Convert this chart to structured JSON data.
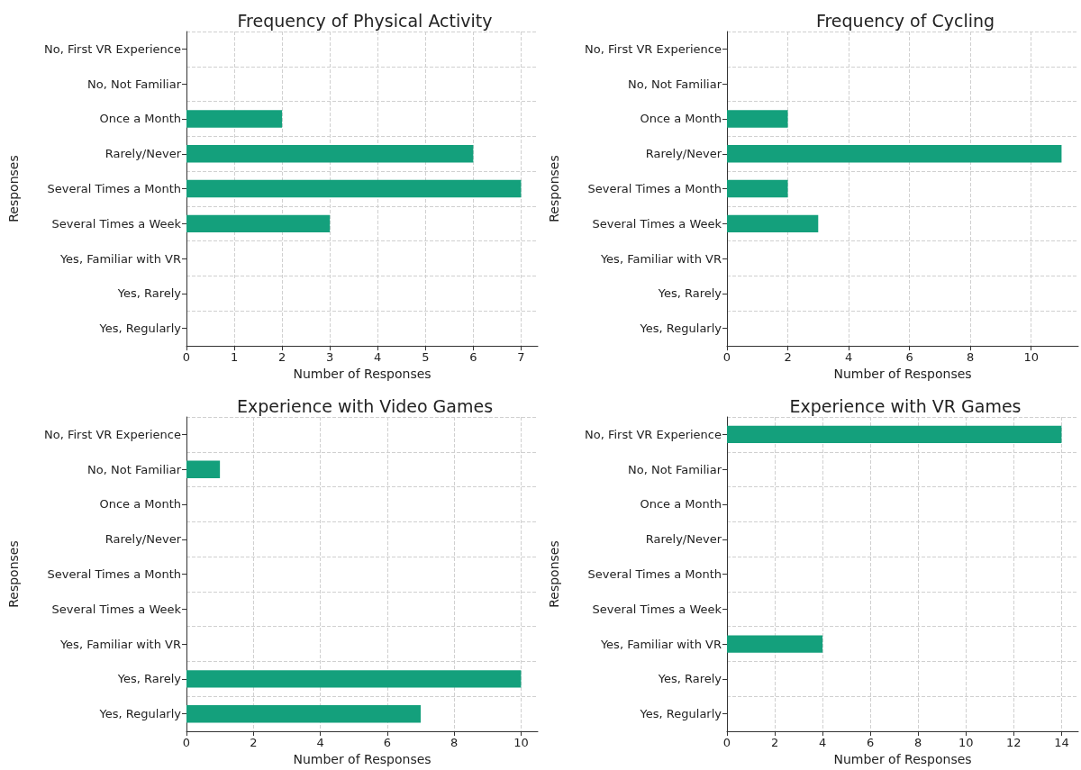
{
  "chart_data": [
    {
      "type": "bar",
      "orientation": "horizontal",
      "title": "Frequency of Physical Activity",
      "xlabel": "Number of Responses",
      "ylabel": "Responses",
      "categories": [
        "No, First VR Experience",
        "No, Not Familiar",
        "Once a Month",
        "Rarely/Never",
        "Several Times a Month",
        "Several Times a Week",
        "Yes, Familiar with VR",
        "Yes, Rarely",
        "Yes, Regularly"
      ],
      "values": [
        0,
        0,
        2,
        6,
        7,
        3,
        0,
        0,
        0
      ],
      "color": "#14a07c",
      "xlim": [
        0,
        7.35
      ],
      "xticks": [
        0,
        1,
        2,
        3,
        4,
        5,
        6,
        7
      ],
      "grid": true
    },
    {
      "type": "bar",
      "orientation": "horizontal",
      "title": "Frequency of Cycling",
      "xlabel": "Number of Responses",
      "ylabel": "Responses",
      "categories": [
        "No, First VR Experience",
        "No, Not Familiar",
        "Once a Month",
        "Rarely/Never",
        "Several Times a Month",
        "Several Times a Week",
        "Yes, Familiar with VR",
        "Yes, Rarely",
        "Yes, Regularly"
      ],
      "values": [
        0,
        0,
        2,
        11,
        2,
        3,
        0,
        0,
        0
      ],
      "color": "#14a07c",
      "xlim": [
        0,
        11.55
      ],
      "xticks": [
        0,
        2,
        4,
        6,
        8,
        10
      ],
      "grid": true
    },
    {
      "type": "bar",
      "orientation": "horizontal",
      "title": "Experience with Video Games",
      "xlabel": "Number of Responses",
      "ylabel": "Responses",
      "categories": [
        "No, First VR Experience",
        "No, Not Familiar",
        "Once a Month",
        "Rarely/Never",
        "Several Times a Month",
        "Several Times a Week",
        "Yes, Familiar with VR",
        "Yes, Rarely",
        "Yes, Regularly"
      ],
      "values": [
        0,
        1,
        0,
        0,
        0,
        0,
        0,
        10,
        7
      ],
      "color": "#14a07c",
      "xlim": [
        0,
        10.5
      ],
      "xticks": [
        0,
        2,
        4,
        6,
        8,
        10
      ],
      "grid": true
    },
    {
      "type": "bar",
      "orientation": "horizontal",
      "title": "Experience with VR Games",
      "xlabel": "Number of Responses",
      "ylabel": "Responses",
      "categories": [
        "No, First VR Experience",
        "No, Not Familiar",
        "Once a Month",
        "Rarely/Never",
        "Several Times a Month",
        "Several Times a Week",
        "Yes, Familiar with VR",
        "Yes, Rarely",
        "Yes, Regularly"
      ],
      "values": [
        14,
        0,
        0,
        0,
        0,
        0,
        4,
        0,
        0
      ],
      "color": "#14a07c",
      "xlim": [
        0,
        14.7
      ],
      "xticks": [
        0,
        2,
        4,
        6,
        8,
        10,
        12,
        14
      ],
      "grid": true
    }
  ]
}
